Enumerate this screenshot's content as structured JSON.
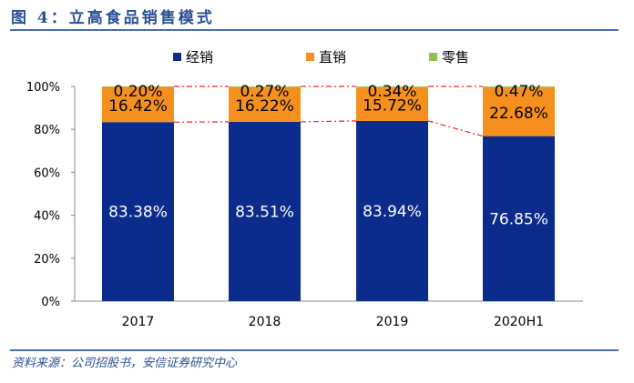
{
  "title": "图 4：立高食品销售模式",
  "source": "资料来源：公司招股书，安信证券研究中心",
  "colors": {
    "经销": "#0b2c8c",
    "直销": "#f5901e",
    "零售": "#92c050",
    "trend": "#ff2020"
  },
  "chart_data": {
    "type": "bar",
    "stacked": true,
    "categories": [
      "2017",
      "2018",
      "2019",
      "2020H1"
    ],
    "series": [
      {
        "name": "经销",
        "values": [
          83.38,
          83.51,
          83.94,
          76.85
        ],
        "labels": [
          "83.38%",
          "83.51%",
          "83.94%",
          "76.85%"
        ]
      },
      {
        "name": "直销",
        "values": [
          16.42,
          16.22,
          15.72,
          22.68
        ],
        "labels": [
          "16.42%",
          "16.22%",
          "15.72%",
          "22.68%"
        ]
      },
      {
        "name": "零售",
        "values": [
          0.2,
          0.27,
          0.34,
          0.47
        ],
        "labels": [
          "0.20%",
          "0.27%",
          "0.34%",
          "0.47%"
        ]
      }
    ],
    "yticks": [
      "0%",
      "20%",
      "40%",
      "60%",
      "80%",
      "100%"
    ],
    "ylim": [
      0,
      100
    ],
    "legend": "top"
  }
}
